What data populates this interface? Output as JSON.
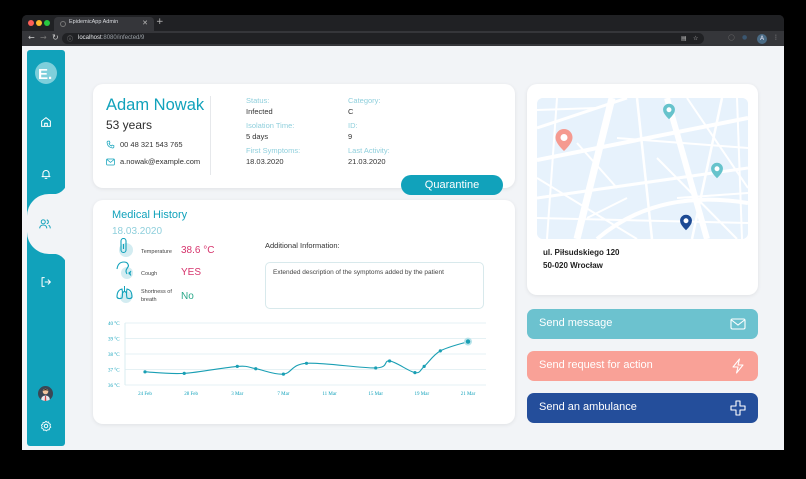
{
  "browser": {
    "tab_title": "EpidemicApp Admin",
    "url_host": "localhost",
    "url_path": ":8080/infected/9",
    "profile_initial": "A"
  },
  "sidebar": {
    "logo": "E.",
    "items": [
      {
        "name": "home",
        "icon": "home-icon"
      },
      {
        "name": "notifications",
        "icon": "bell-icon"
      },
      {
        "name": "patients",
        "icon": "users-icon",
        "active": true
      },
      {
        "name": "logout",
        "icon": "logout-icon"
      }
    ],
    "bottom": [
      {
        "name": "user-avatar",
        "icon": "avatar"
      },
      {
        "name": "settings",
        "icon": "gear-icon"
      }
    ]
  },
  "patient": {
    "name": "Adam Nowak",
    "age": "53 years",
    "phone": "00 48 321 543 765",
    "email": "a.nowak@example.com",
    "fields": {
      "status_label": "Status:",
      "status_value": "Infected",
      "category_label": "Category:",
      "category_value": "C",
      "isolation_label": "Isolation Time:",
      "isolation_value": "5 days",
      "id_label": "ID:",
      "id_value": "9",
      "first_symptoms_label": "First Symptoms:",
      "first_symptoms_value": "18.03.2020",
      "last_activity_label": "Last Activity:",
      "last_activity_value": "21.03.2020"
    },
    "quarantine_button": "Quarantine"
  },
  "medical_history": {
    "title": "Medical History",
    "date": "18.03.2020",
    "symptoms": [
      {
        "label": "Temperature",
        "value": "38.6 °C",
        "color": "#d6336c"
      },
      {
        "label": "Cough",
        "value": "YES",
        "color": "#d6336c"
      },
      {
        "label": "Shortness of breath",
        "value": "No",
        "color": "#2aa889"
      }
    ],
    "additional_info_label": "Additional Information:",
    "additional_info_text": "Extended description of the symptoms added by the patient"
  },
  "chart_data": {
    "type": "line",
    "title": "",
    "xlabel": "",
    "ylabel": "",
    "ylim": [
      36,
      40
    ],
    "y_ticks": [
      "36 °C",
      "37 °C",
      "38 °C",
      "39 °C",
      "40 °C"
    ],
    "x_ticks": [
      "24 Feb",
      "28 Feb",
      "3 Mar",
      "7 Mar",
      "11 Mar",
      "15 Mar",
      "19 Mar",
      "21 Mar"
    ],
    "grid": true,
    "series": [
      {
        "name": "Temperature",
        "color": "#1a9fb4",
        "points": [
          {
            "x": 0.0,
            "y": 36.85
          },
          {
            "x": 0.85,
            "y": 36.75
          },
          {
            "x": 2.0,
            "y": 37.2
          },
          {
            "x": 2.4,
            "y": 37.05
          },
          {
            "x": 3.0,
            "y": 36.7
          },
          {
            "x": 3.5,
            "y": 37.4
          },
          {
            "x": 5.0,
            "y": 37.1
          },
          {
            "x": 5.3,
            "y": 37.55
          },
          {
            "x": 5.85,
            "y": 36.8
          },
          {
            "x": 6.05,
            "y": 37.2
          },
          {
            "x": 6.4,
            "y": 38.2
          },
          {
            "x": 7.0,
            "y": 38.8
          }
        ]
      }
    ]
  },
  "map": {
    "address_line1": "ul. Piłsudskiego 120",
    "address_line2": "50-020 Wrocław"
  },
  "actions": [
    {
      "label": "Send message",
      "icon": "mail-icon",
      "color": "#6cc2cf"
    },
    {
      "label": "Send request for action",
      "icon": "lightning-icon",
      "color": "#f9a197"
    },
    {
      "label": "Send an ambulance",
      "icon": "cross-icon",
      "color": "#244e9b"
    }
  ]
}
